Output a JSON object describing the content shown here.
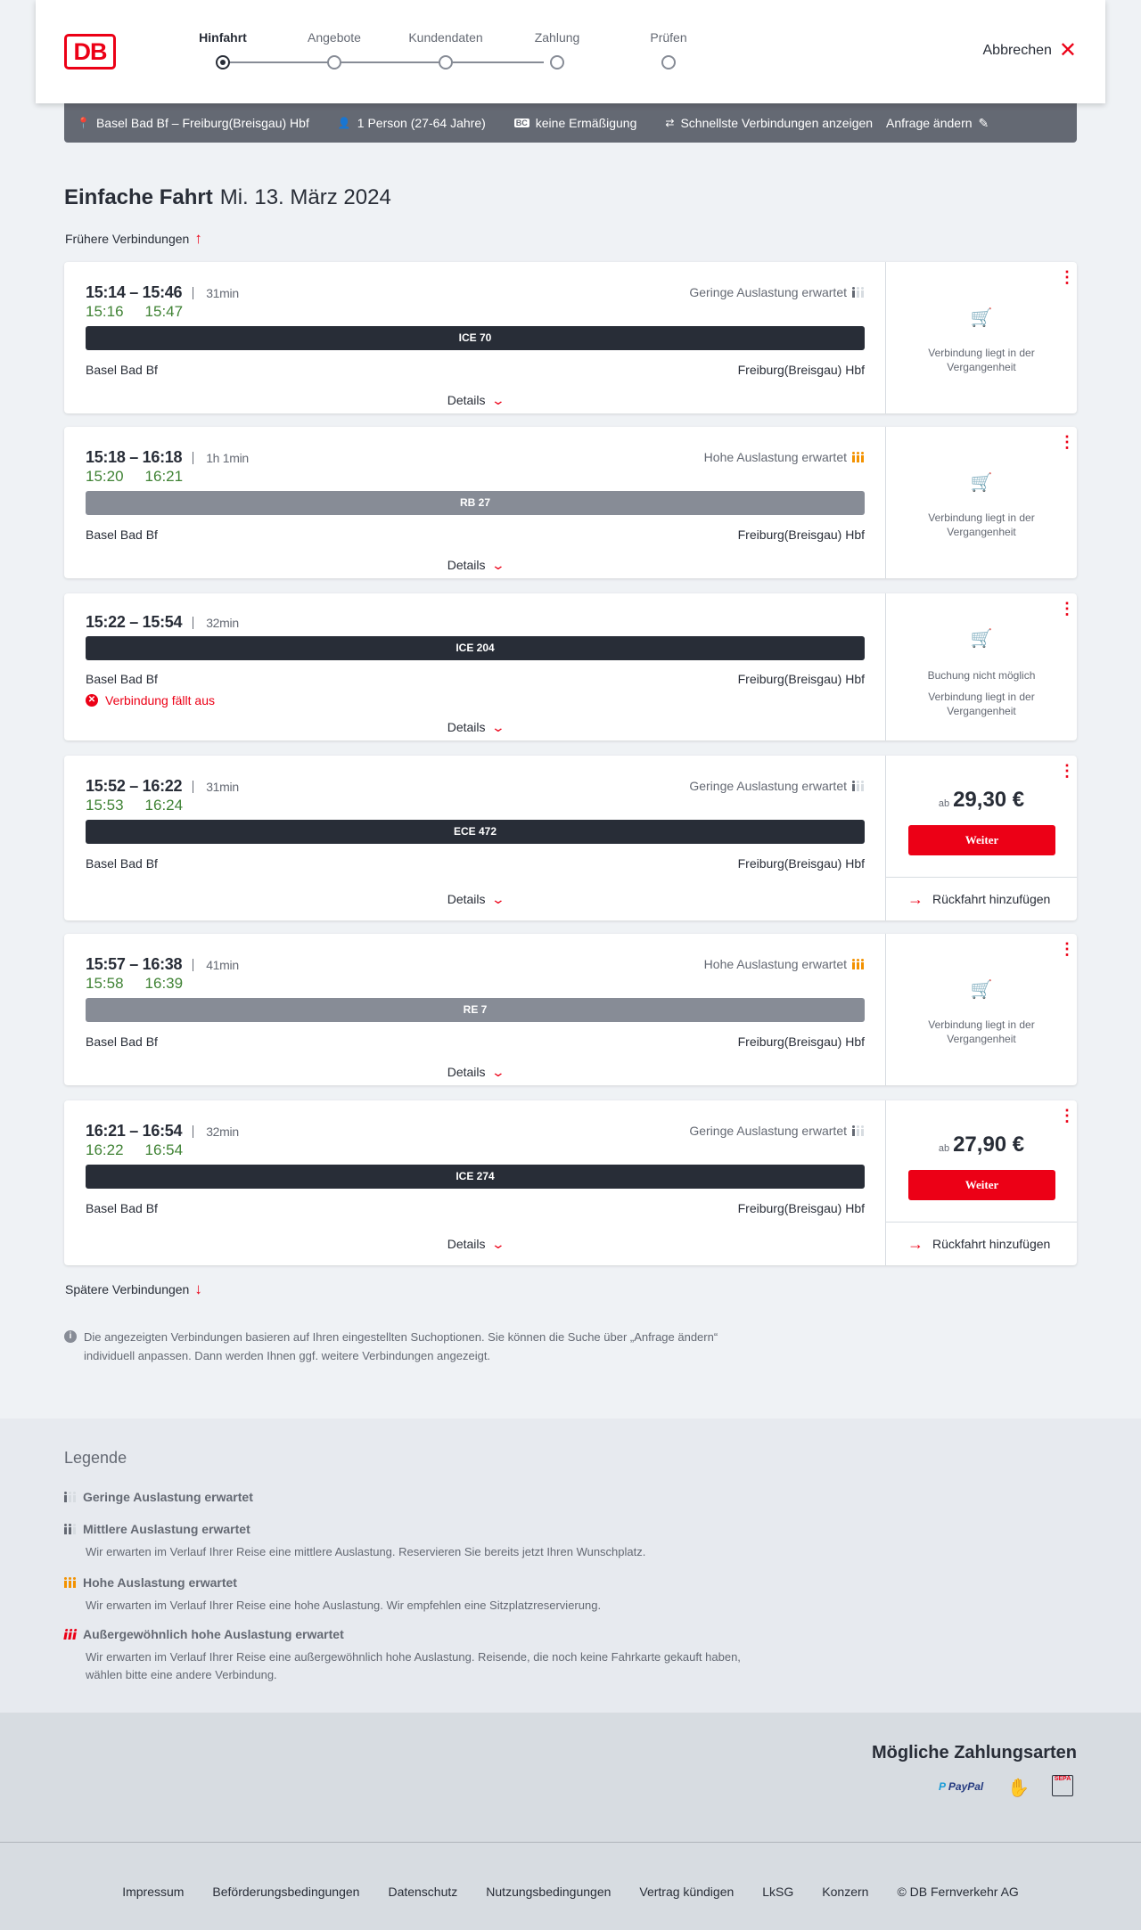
{
  "header": {
    "logo": "DB",
    "steps": [
      "Hinfahrt",
      "Angebote",
      "Kundendaten",
      "Zahlung",
      "Prüfen"
    ],
    "active_step": 0,
    "cancel_label": "Abbrechen"
  },
  "summary": {
    "route": "Basel Bad Bf – Freiburg(Breisgau) Hbf",
    "passengers": "1 Person (27-64 Jahre)",
    "discount_badge": "BC",
    "discount": "keine Ermäßigung",
    "mode": "Schnellste Verbindungen anzeigen",
    "edit": "Anfrage ändern"
  },
  "page": {
    "title": "Einfache Fahrt",
    "date": "Mi. 13. März 2024",
    "earlier": "Frühere Verbindungen",
    "later": "Spätere Verbindungen",
    "info": "Die angezeigten Verbindungen basieren auf Ihren eingestellten Suchoptionen. Sie können die Suche über „Anfrage ändern“ individuell anpassen. Dann werden Ihnen ggf. weitere Verbindungen angezeigt."
  },
  "labels": {
    "details": "Details",
    "weiter": "Weiter",
    "ab": "ab",
    "return": "Rückfahrt hinzufügen",
    "past": "Verbindung liegt in der Vergangenheit",
    "no_booking": "Buchung nicht möglich"
  },
  "connections": [
    {
      "time": "15:14 – 15:46",
      "duration": "31min",
      "rt_dep": "15:16",
      "rt_arr": "15:47",
      "load": "Geringe Auslastung erwartet",
      "load_level": "low",
      "train": "ICE 70",
      "train_color": "#282d37",
      "from": "Basel Bad Bf",
      "to": "Freiburg(Breisgau) Hbf",
      "status": "past"
    },
    {
      "time": "15:18 – 16:18",
      "duration": "1h 1min",
      "rt_dep": "15:20",
      "rt_arr": "16:21",
      "load": "Hohe Auslastung erwartet",
      "load_level": "high",
      "train": "RB 27",
      "train_color": "#878c96",
      "from": "Basel Bad Bf",
      "to": "Freiburg(Breisgau) Hbf",
      "status": "past"
    },
    {
      "time": "15:22 – 15:54",
      "duration": "32min",
      "train": "ICE 204",
      "train_color": "#282d37",
      "from": "Basel Bad Bf",
      "to": "Freiburg(Breisgau) Hbf",
      "cancelled": "Verbindung fällt aus",
      "status": "cancelled"
    },
    {
      "time": "15:52 – 16:22",
      "duration": "31min",
      "rt_dep": "15:53",
      "rt_arr": "16:24",
      "load": "Geringe Auslastung erwartet",
      "load_level": "low",
      "train": "ECE 472",
      "train_color": "#282d37",
      "from": "Basel Bad Bf",
      "to": "Freiburg(Breisgau) Hbf",
      "status": "price",
      "price": "29,30 €"
    },
    {
      "time": "15:57 – 16:38",
      "duration": "41min",
      "rt_dep": "15:58",
      "rt_arr": "16:39",
      "load": "Hohe Auslastung erwartet",
      "load_level": "high",
      "train": "RE 7",
      "train_color": "#878c96",
      "from": "Basel Bad Bf",
      "to": "Freiburg(Breisgau) Hbf",
      "status": "past"
    },
    {
      "time": "16:21 – 16:54",
      "duration": "32min",
      "rt_dep": "16:22",
      "rt_arr": "16:54",
      "load": "Geringe Auslastung erwartet",
      "load_level": "low",
      "train": "ICE 274",
      "train_color": "#282d37",
      "from": "Basel Bad Bf",
      "to": "Freiburg(Breisgau) Hbf",
      "status": "price",
      "price": "27,90 €"
    }
  ],
  "legend": {
    "title": "Legende",
    "items": [
      {
        "level": "low",
        "title": "Geringe Auslastung erwartet",
        "desc": ""
      },
      {
        "level": "mid",
        "title": "Mittlere Auslastung erwartet",
        "desc": "Wir erwarten im Verlauf Ihrer Reise eine mittlere Auslastung. Reservieren Sie bereits jetzt Ihren Wunschplatz."
      },
      {
        "level": "high",
        "title": "Hohe Auslastung erwartet",
        "desc": "Wir erwarten im Verlauf Ihrer Reise eine hohe Auslastung. Wir empfehlen eine Sitzplatzreservierung."
      },
      {
        "level": "ext",
        "title": "Außergewöhnlich hohe Auslastung erwartet",
        "desc": "Wir erwarten im Verlauf Ihrer Reise eine außergewöhnlich hohe Auslastung. Reisende, die noch keine Fahrkarte gekauft haben, wählen bitte eine andere Verbindung."
      }
    ]
  },
  "payment": {
    "title": "Mögliche Zahlungsarten",
    "methods": [
      "PayPal",
      "contactless-card-icon",
      "SEPA"
    ]
  },
  "footer": [
    "Impressum",
    "Beförderungsbedingungen",
    "Datenschutz",
    "Nutzungsbedingungen",
    "Vertrag kündigen",
    "LkSG",
    "Konzern",
    "© DB Fernverkehr AG"
  ]
}
